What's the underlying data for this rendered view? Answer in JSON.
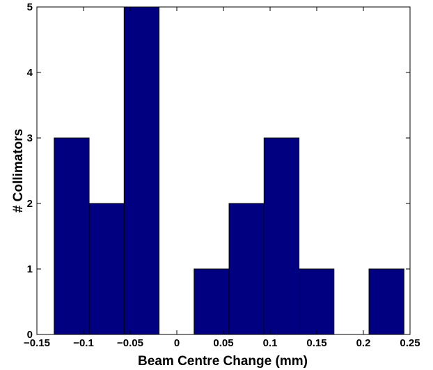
{
  "chart_data": {
    "type": "bar",
    "title": "",
    "xlabel": "Beam Centre Change (mm)",
    "ylabel": "# Collimators",
    "xlim": [
      -0.15,
      0.25
    ],
    "ylim": [
      0,
      5
    ],
    "xticks": [
      "−0.15",
      "−0.1",
      "−0.05",
      "0",
      "0.05",
      "0.1",
      "0.15",
      "0.2",
      "0.25"
    ],
    "xtick_values": [
      -0.15,
      -0.1,
      -0.05,
      0,
      0.05,
      0.1,
      0.15,
      0.2,
      0.25
    ],
    "yticks": [
      "0",
      "1",
      "2",
      "3",
      "4",
      "5"
    ],
    "ytick_values": [
      0,
      1,
      2,
      3,
      4,
      5
    ],
    "bin_start": -0.1315,
    "bin_width": 0.0375,
    "bin_centers": [
      -0.1128,
      -0.0753,
      -0.0378,
      -0.0003,
      0.0373,
      0.0748,
      0.1123,
      0.1498,
      0.1873,
      0.2248
    ],
    "values": [
      3,
      2,
      5,
      0,
      1,
      2,
      3,
      1,
      0,
      1
    ],
    "bar_color": "#000080",
    "grid": false,
    "legend": "none"
  }
}
